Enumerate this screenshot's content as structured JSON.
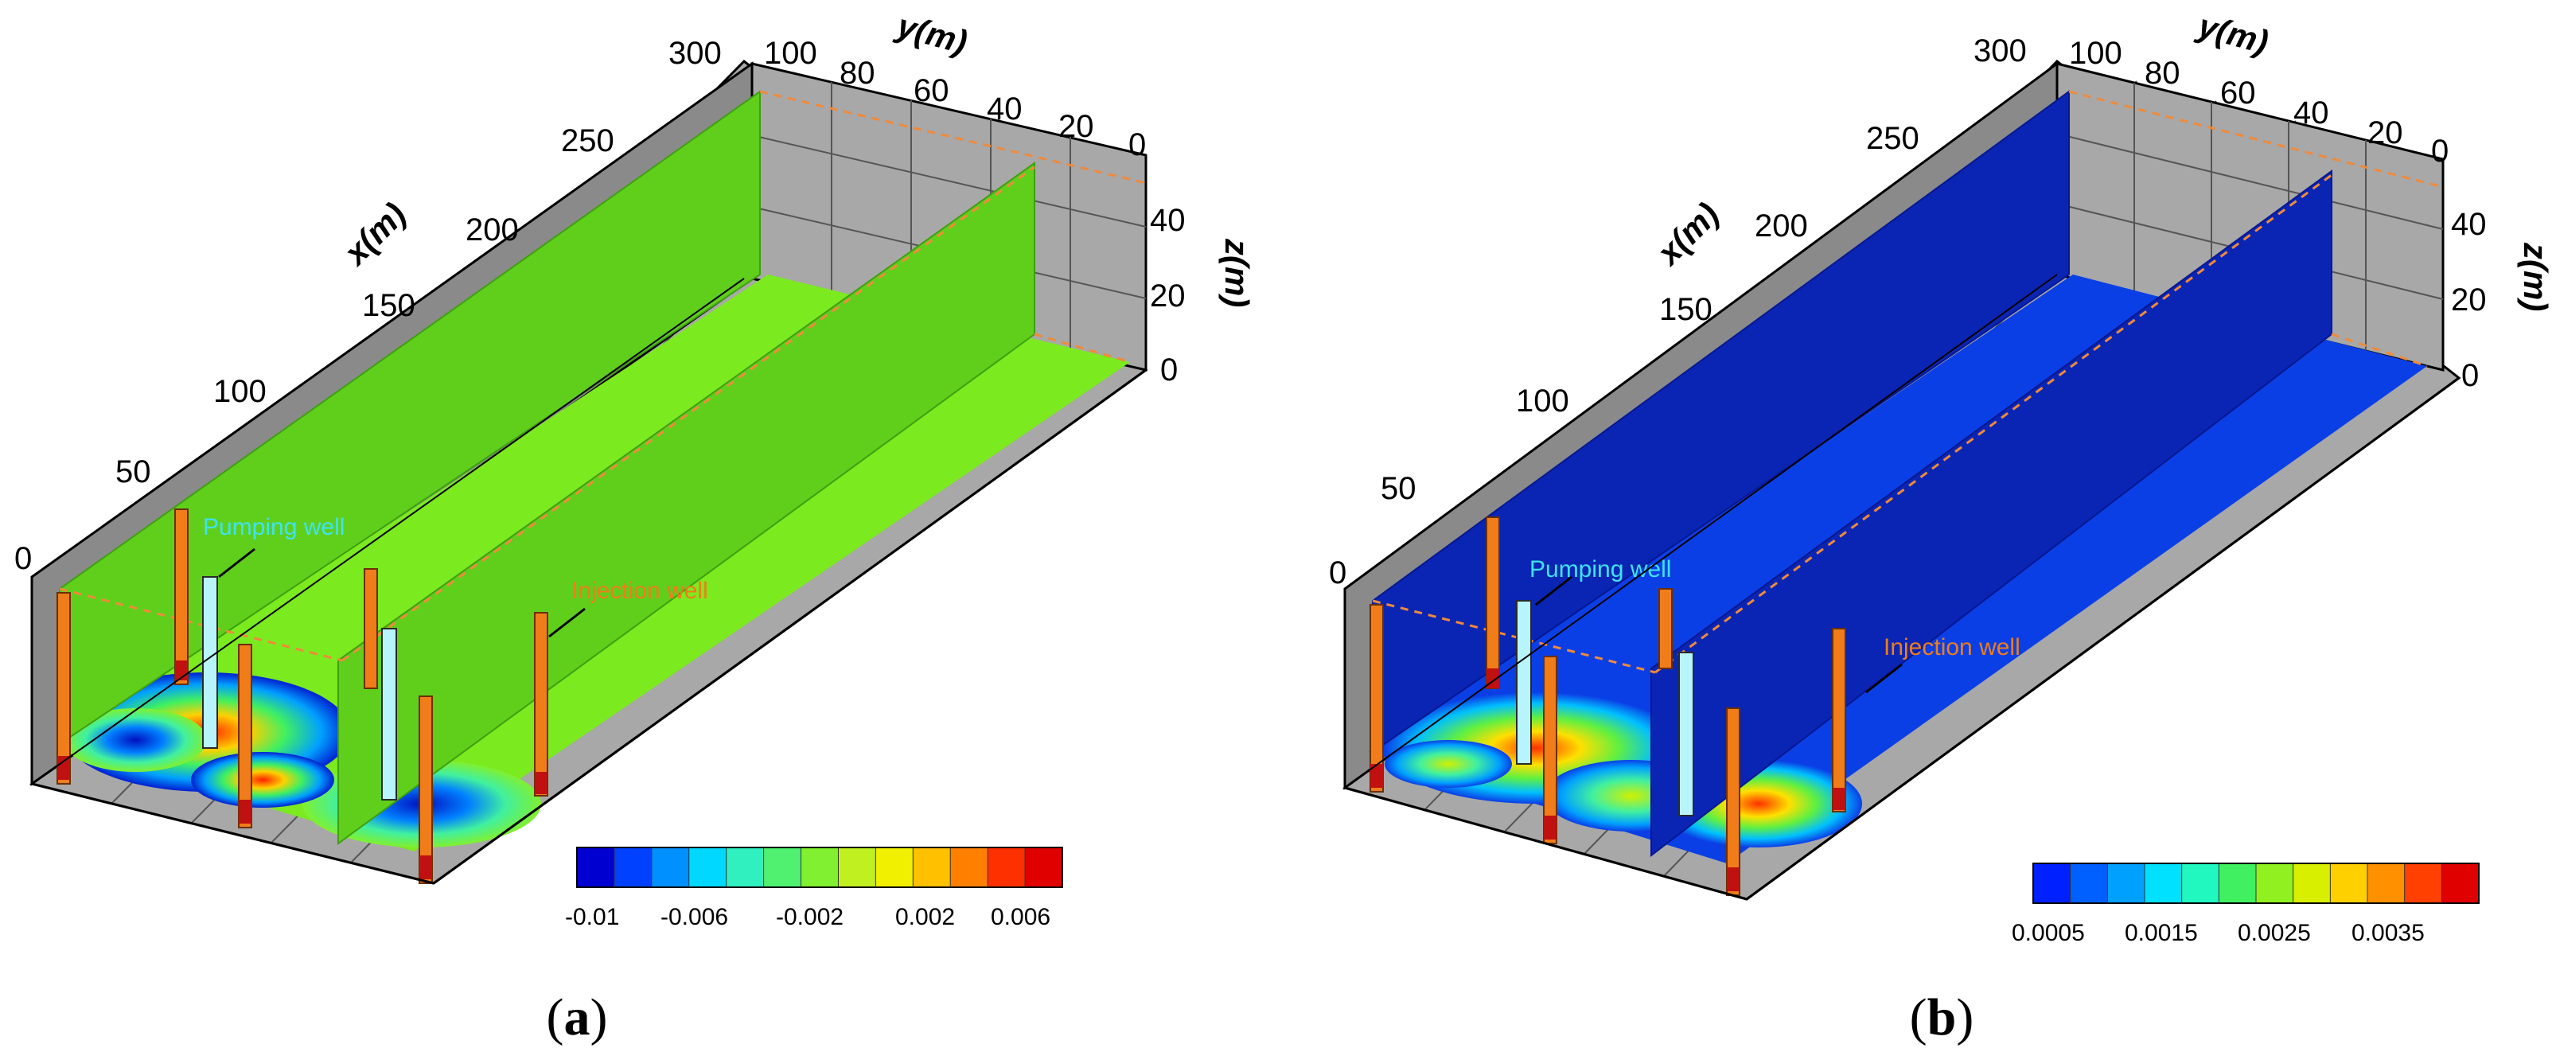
{
  "colors": {
    "panel_a_wall": "#5fcf1c",
    "panel_a_floor": "#7bea1f",
    "panel_b_wall": "#0a25b4",
    "panel_b_floor": "#0b3fe6",
    "box_gray": "#a8a8a8",
    "well_orange": "#f07d1a",
    "well_red": "#c01010",
    "pumping_well_fill": "#b8f4fb",
    "pumping_label": "#3fe3f0",
    "injection_label": "#f07d1a",
    "dashed_line": "#f08a3a"
  },
  "panels": [
    {
      "id": "a",
      "caption_open": "(",
      "caption_letter": "a",
      "caption_close": ")",
      "x_axis": {
        "title": "x(m)",
        "ticks": [
          "0",
          "50",
          "100",
          "150",
          "200",
          "250",
          "300"
        ]
      },
      "y_axis": {
        "title": "y(m)",
        "ticks": [
          "100",
          "80",
          "60",
          "40",
          "20",
          "0"
        ]
      },
      "z_axis": {
        "title": "z(m)",
        "ticks": [
          "40",
          "20",
          "0"
        ]
      },
      "pumping_label": "Pumping well",
      "injection_label": "Injection well",
      "colorbar": {
        "ticks": [
          "-0.01",
          "-0.006",
          "-0.002",
          "0.002",
          "0.006"
        ],
        "colors": [
          "#0000d0",
          "#0040ff",
          "#0090ff",
          "#00d8ff",
          "#30f0c0",
          "#50f070",
          "#80f030",
          "#c0f020",
          "#f0f000",
          "#ffc000",
          "#ff8000",
          "#ff3000",
          "#e00000"
        ]
      }
    },
    {
      "id": "b",
      "caption_open": "(",
      "caption_letter": "b",
      "caption_close": ")",
      "x_axis": {
        "title": "x(m)",
        "ticks": [
          "0",
          "50",
          "100",
          "150",
          "200",
          "250",
          "300"
        ]
      },
      "y_axis": {
        "title": "y(m)",
        "ticks": [
          "100",
          "80",
          "60",
          "40",
          "20",
          "0"
        ]
      },
      "z_axis": {
        "title": "z(m)",
        "ticks": [
          "40",
          "20",
          "0"
        ]
      },
      "pumping_label": "Pumping well",
      "injection_label": "Injection well",
      "colorbar": {
        "ticks": [
          "0.0005",
          "0.0015",
          "0.0025",
          "0.0035"
        ],
        "colors": [
          "#0020ff",
          "#0060ff",
          "#00a0ff",
          "#00e0ff",
          "#20f8c0",
          "#40f060",
          "#90f020",
          "#d8f000",
          "#ffd000",
          "#ff9000",
          "#ff4000",
          "#e00000"
        ]
      }
    }
  ]
}
